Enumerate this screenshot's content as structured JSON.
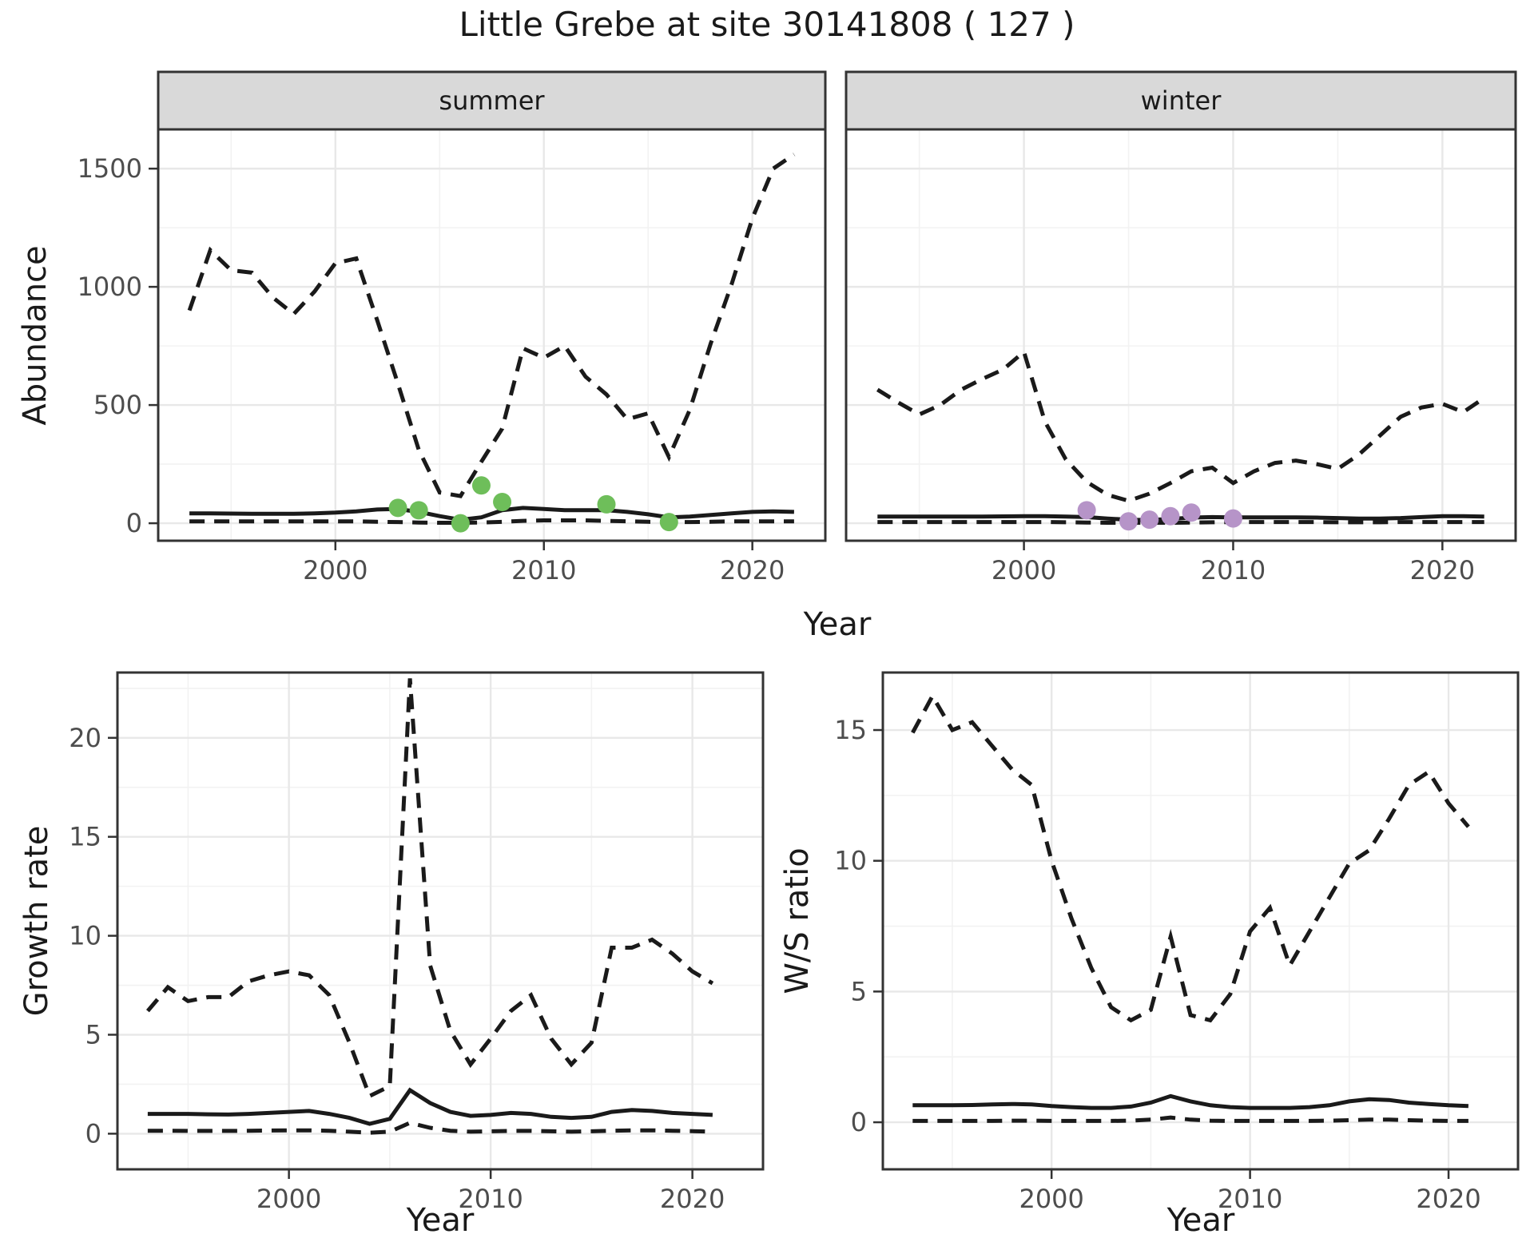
{
  "title": "Little Grebe at site 30141808 ( 127 )",
  "axes": {
    "top_y_label": "Abundance",
    "top_x_label": "Year",
    "bottom_left_y_label": "Growth rate",
    "bottom_right_y_label": "W/S ratio",
    "bottom_x_label": "Year"
  },
  "colors": {
    "line": "#1a1a1a",
    "summer_points": "#6ebe5a",
    "winter_points": "#b694c8",
    "grid_major": "#e8e8e8",
    "grid_minor": "#f2f2f2",
    "panel_bg": "#ffffff",
    "panel_border": "#333333",
    "strip_bg": "#d9d9d9",
    "tick_text": "#4d4d4d"
  },
  "chart_data": [
    {
      "id": "abundance-summer",
      "type": "line",
      "facet_label": "summer",
      "xlabel": "Year",
      "ylabel": "Abundance",
      "xlim": [
        1991.5,
        2023.5
      ],
      "ylim": [
        -74,
        1666
      ],
      "x_ticks": [
        2000,
        2010,
        2020
      ],
      "x_minor": [
        1995,
        2005,
        2015
      ],
      "y_ticks": [
        0,
        500,
        1000,
        1500
      ],
      "y_minor": [
        250,
        750,
        1250
      ],
      "years": [
        1993,
        1994,
        1995,
        1996,
        1997,
        1998,
        1999,
        2000,
        2001,
        2002,
        2003,
        2004,
        2005,
        2006,
        2007,
        2008,
        2009,
        2010,
        2011,
        2012,
        2013,
        2014,
        2015,
        2016,
        2017,
        2018,
        2019,
        2020,
        2021,
        2022
      ],
      "series": [
        {
          "name": "upper 95% CI",
          "linetype": "dashed",
          "values": [
            900,
            1155,
            1070,
            1060,
            955,
            885,
            980,
            1100,
            1120,
            860,
            590,
            310,
            130,
            115,
            260,
            400,
            740,
            700,
            750,
            620,
            545,
            440,
            465,
            280,
            480,
            760,
            1010,
            1290,
            1500,
            1560
          ]
        },
        {
          "name": "estimate",
          "linetype": "solid",
          "values": [
            42,
            42,
            41,
            40,
            40,
            40,
            42,
            45,
            50,
            58,
            60,
            48,
            30,
            15,
            25,
            55,
            65,
            60,
            55,
            55,
            55,
            48,
            38,
            25,
            28,
            35,
            42,
            48,
            50,
            48
          ]
        },
        {
          "name": "lower 95% CI",
          "linetype": "dashed",
          "values": [
            8,
            8,
            8,
            8,
            8,
            8,
            8,
            8,
            8,
            6,
            5,
            3,
            2,
            2,
            3,
            6,
            10,
            12,
            12,
            12,
            10,
            8,
            6,
            5,
            5,
            6,
            8,
            8,
            8,
            8
          ]
        }
      ],
      "observed_points": {
        "years": [
          2003,
          2004,
          2006,
          2007,
          2008,
          2013,
          2016
        ],
        "values": [
          65,
          55,
          0,
          160,
          90,
          80,
          5
        ],
        "color": "#6ebe5a"
      }
    },
    {
      "id": "abundance-winter",
      "type": "line",
      "facet_label": "winter",
      "xlabel": "Year",
      "ylabel": "Abundance",
      "xlim": [
        1991.5,
        2023.5
      ],
      "ylim": [
        -74,
        1666
      ],
      "x_ticks": [
        2000,
        2010,
        2020
      ],
      "x_minor": [
        1995,
        2005,
        2015
      ],
      "y_ticks": [
        0,
        500,
        1000,
        1500
      ],
      "y_minor": [
        250,
        750,
        1250
      ],
      "years": [
        1993,
        1994,
        1995,
        1996,
        1997,
        1998,
        1999,
        2000,
        2001,
        2002,
        2003,
        2004,
        2005,
        2006,
        2007,
        2008,
        2009,
        2010,
        2011,
        2012,
        2013,
        2014,
        2015,
        2016,
        2017,
        2018,
        2019,
        2020,
        2021,
        2022
      ],
      "series": [
        {
          "name": "upper 95% CI",
          "linetype": "dashed",
          "values": [
            565,
            510,
            460,
            500,
            565,
            610,
            650,
            725,
            430,
            270,
            175,
            120,
            95,
            125,
            170,
            220,
            235,
            170,
            220,
            255,
            265,
            250,
            230,
            290,
            370,
            450,
            490,
            505,
            470,
            530
          ]
        },
        {
          "name": "estimate",
          "linetype": "solid",
          "values": [
            28,
            28,
            28,
            28,
            28,
            28,
            29,
            30,
            30,
            28,
            26,
            20,
            15,
            14,
            18,
            24,
            26,
            25,
            25,
            25,
            25,
            24,
            22,
            20,
            20,
            22,
            26,
            30,
            30,
            28
          ]
        },
        {
          "name": "lower 95% CI",
          "linetype": "dashed",
          "values": [
            5,
            5,
            5,
            5,
            5,
            5,
            5,
            5,
            5,
            4,
            3,
            2,
            2,
            2,
            2,
            3,
            4,
            5,
            5,
            5,
            5,
            5,
            4,
            4,
            4,
            5,
            5,
            5,
            5,
            5
          ]
        }
      ],
      "observed_points": {
        "years": [
          2003,
          2005,
          2006,
          2007,
          2008,
          2010
        ],
        "values": [
          55,
          8,
          15,
          30,
          45,
          20
        ],
        "color": "#b694c8"
      }
    },
    {
      "id": "growth-rate",
      "type": "line",
      "facet_label": "",
      "xlabel": "Year",
      "ylabel": "Growth rate",
      "xlim": [
        1991.5,
        2023.5
      ],
      "ylim": [
        -1.8,
        23.3
      ],
      "x_ticks": [
        2000,
        2010,
        2020
      ],
      "x_minor": [
        1995,
        2005,
        2015
      ],
      "y_ticks": [
        0,
        5,
        10,
        15,
        20
      ],
      "y_minor": [
        2.5,
        7.5,
        12.5,
        17.5,
        22.5
      ],
      "years": [
        1993,
        1994,
        1995,
        1996,
        1997,
        1998,
        1999,
        2000,
        2001,
        2002,
        2003,
        2004,
        2005,
        2006,
        2007,
        2008,
        2009,
        2010,
        2011,
        2012,
        2013,
        2014,
        2015,
        2016,
        2017,
        2018,
        2019,
        2020,
        2021
      ],
      "series": [
        {
          "name": "upper 95% CI",
          "linetype": "dashed",
          "values": [
            6.2,
            7.4,
            6.7,
            6.9,
            6.9,
            7.7,
            8.0,
            8.2,
            8.0,
            7.0,
            4.6,
            1.9,
            2.4,
            23.0,
            8.5,
            5.2,
            3.5,
            4.8,
            6.2,
            7.0,
            4.8,
            3.5,
            4.6,
            9.4,
            9.4,
            9.8,
            9.1,
            8.2,
            7.6
          ]
        },
        {
          "name": "estimate",
          "linetype": "solid",
          "values": [
            1.0,
            1.0,
            1.0,
            0.98,
            0.97,
            1.0,
            1.05,
            1.1,
            1.15,
            1.0,
            0.8,
            0.5,
            0.75,
            2.2,
            1.55,
            1.1,
            0.9,
            0.95,
            1.05,
            1.0,
            0.85,
            0.8,
            0.85,
            1.1,
            1.2,
            1.15,
            1.05,
            1.0,
            0.95
          ]
        },
        {
          "name": "lower 95% CI",
          "linetype": "dashed",
          "values": [
            0.15,
            0.15,
            0.14,
            0.14,
            0.14,
            0.15,
            0.16,
            0.17,
            0.17,
            0.15,
            0.1,
            0.05,
            0.1,
            0.55,
            0.3,
            0.15,
            0.1,
            0.12,
            0.14,
            0.14,
            0.12,
            0.1,
            0.12,
            0.15,
            0.17,
            0.17,
            0.15,
            0.13,
            0.1
          ]
        }
      ],
      "observed_points": {
        "years": [],
        "values": [],
        "color": "#6ebe5a"
      }
    },
    {
      "id": "ws-ratio",
      "type": "line",
      "facet_label": "",
      "xlabel": "Year",
      "ylabel": "W/S ratio",
      "xlim": [
        1991.5,
        2023.5
      ],
      "ylim": [
        -1.8,
        17.2
      ],
      "x_ticks": [
        2000,
        2010,
        2020
      ],
      "x_minor": [
        1995,
        2005,
        2015
      ],
      "y_ticks": [
        0,
        5,
        10,
        15
      ],
      "y_minor": [
        2.5,
        7.5,
        12.5
      ],
      "years": [
        1993,
        1994,
        1995,
        1996,
        1997,
        1998,
        1999,
        2000,
        2001,
        2002,
        2003,
        2004,
        2005,
        2006,
        2007,
        2008,
        2009,
        2010,
        2011,
        2012,
        2013,
        2014,
        2015,
        2016,
        2017,
        2018,
        2019,
        2020,
        2021
      ],
      "series": [
        {
          "name": "upper 95% CI",
          "linetype": "dashed",
          "values": [
            14.9,
            16.3,
            15.0,
            15.3,
            14.4,
            13.5,
            12.9,
            10.0,
            7.8,
            5.9,
            4.4,
            3.9,
            4.3,
            7.1,
            4.1,
            3.9,
            4.9,
            7.3,
            8.2,
            6.0,
            7.3,
            8.6,
            9.9,
            10.4,
            11.6,
            12.9,
            13.4,
            12.2,
            11.3
          ]
        },
        {
          "name": "estimate",
          "linetype": "solid",
          "values": [
            0.65,
            0.65,
            0.65,
            0.66,
            0.68,
            0.7,
            0.68,
            0.62,
            0.58,
            0.55,
            0.55,
            0.6,
            0.75,
            1.0,
            0.8,
            0.65,
            0.58,
            0.55,
            0.55,
            0.55,
            0.58,
            0.65,
            0.8,
            0.88,
            0.85,
            0.75,
            0.7,
            0.65,
            0.62
          ]
        },
        {
          "name": "lower 95% CI",
          "linetype": "dashed",
          "values": [
            0.05,
            0.05,
            0.05,
            0.05,
            0.05,
            0.06,
            0.06,
            0.05,
            0.05,
            0.05,
            0.05,
            0.06,
            0.1,
            0.18,
            0.1,
            0.06,
            0.05,
            0.05,
            0.05,
            0.05,
            0.05,
            0.06,
            0.08,
            0.1,
            0.1,
            0.08,
            0.06,
            0.05,
            0.05
          ]
        }
      ],
      "observed_points": {
        "years": [],
        "values": [],
        "color": "#b694c8"
      }
    }
  ]
}
